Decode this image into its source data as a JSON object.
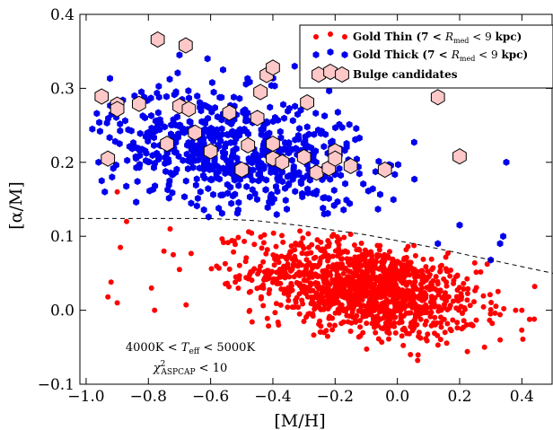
{
  "chart_data": {
    "type": "scatter",
    "xlabel": "[M/H]",
    "ylabel": "[α/M]",
    "xlim": [
      -1.02,
      0.5
    ],
    "ylim": [
      -0.1,
      0.4
    ],
    "x_ticks": [
      -1.0,
      -0.8,
      -0.6,
      -0.4,
      -0.2,
      0.0,
      0.2,
      0.4
    ],
    "y_ticks": [
      -0.1,
      0.0,
      0.1,
      0.2,
      0.3,
      0.4
    ],
    "x_tick_labels": [
      "−1.0",
      "−0.8",
      "−0.6",
      "−0.4",
      "−0.2",
      "0.0",
      "0.2",
      "0.4"
    ],
    "y_tick_labels": [
      "−0.1",
      "0.0",
      "0.1",
      "0.2",
      "0.3",
      "0.4"
    ],
    "grid": false,
    "legend_position": "top-right",
    "annotations": [
      "4000K < T_eff < 5000K",
      "χ²_ASPCAP < 10"
    ],
    "colors": {
      "thin": "#ff0000",
      "thick": "#0000ee",
      "bulge_fill": "#ffc8c8",
      "bulge_edge": "#000000"
    },
    "dividing_line": {
      "style": "dashed",
      "points": [
        [
          -1.02,
          0.124
        ],
        [
          -0.6,
          0.124
        ],
        [
          -0.45,
          0.121
        ],
        [
          -0.3,
          0.114
        ],
        [
          -0.1,
          0.102
        ],
        [
          0.1,
          0.086
        ],
        [
          0.3,
          0.068
        ],
        [
          0.5,
          0.05
        ]
      ]
    },
    "series": [
      {
        "name": "Gold Thin",
        "legend_label": "Gold Thin (7 < R_med < 9 kpc)",
        "marker": "circle",
        "cluster": {
          "center": [
            -0.1,
            0.03
          ],
          "spread": [
            0.18,
            0.03
          ],
          "count": 1300,
          "x_range": [
            -0.8,
            0.45
          ],
          "y_range": [
            -0.075,
            0.125
          ],
          "max_y_at_x": "below dividing line"
        },
        "points": [
          [
            -0.93,
            0.018
          ],
          [
            -0.92,
            0.038
          ],
          [
            -0.9,
            0.01
          ],
          [
            -0.89,
            0.085
          ],
          [
            -0.9,
            0.16
          ],
          [
            -0.87,
            0.12
          ],
          [
            -0.79,
            0.03
          ],
          [
            -0.78,
            0.0
          ],
          [
            -0.75,
            0.08
          ],
          [
            -0.73,
            0.11
          ],
          [
            -0.72,
            0.075
          ],
          [
            -0.7,
            0.055
          ],
          [
            0.38,
            0.0
          ],
          [
            0.4,
            0.0
          ],
          [
            0.33,
            -0.04
          ],
          [
            0.28,
            -0.05
          ]
        ]
      },
      {
        "name": "Gold Thick",
        "legend_label": "Gold Thick (7 < R_med < 9 kpc)",
        "marker": "hexagon",
        "cluster": {
          "center": [
            -0.52,
            0.215
          ],
          "spread": [
            0.2,
            0.04
          ],
          "count": 650,
          "x_range": [
            -0.98,
            0.35
          ],
          "y_range": [
            0.125,
            0.325
          ],
          "min_y_at_x": "above dividing line"
        },
        "points": [
          [
            -0.98,
            0.245
          ],
          [
            -0.96,
            0.2
          ],
          [
            -0.95,
            0.175
          ],
          [
            -0.94,
            0.16
          ],
          [
            -0.7,
            0.345
          ],
          [
            -0.61,
            0.34
          ],
          [
            -0.33,
            0.33
          ],
          [
            -0.56,
            0.325
          ],
          [
            0.3,
            0.068
          ],
          [
            0.33,
            0.09
          ],
          [
            0.34,
            0.1
          ],
          [
            0.35,
            0.2
          ],
          [
            0.2,
            0.115
          ],
          [
            0.13,
            0.09
          ]
        ]
      },
      {
        "name": "Bulge candidates",
        "legend_label": "Bulge candidates",
        "marker": "hexagon",
        "points": [
          [
            -0.95,
            0.289
          ],
          [
            -0.9,
            0.278
          ],
          [
            -0.9,
            0.272
          ],
          [
            -0.83,
            0.279
          ],
          [
            -0.77,
            0.366
          ],
          [
            -0.74,
            0.225
          ],
          [
            -0.7,
            0.276
          ],
          [
            -0.68,
            0.358
          ],
          [
            -0.67,
            0.272
          ],
          [
            -0.65,
            0.24
          ],
          [
            -0.93,
            0.205
          ],
          [
            -0.6,
            0.215
          ],
          [
            -0.54,
            0.267
          ],
          [
            -0.5,
            0.19
          ],
          [
            -0.45,
            0.26
          ],
          [
            -0.48,
            0.223
          ],
          [
            -0.44,
            0.295
          ],
          [
            -0.42,
            0.318
          ],
          [
            -0.4,
            0.328
          ],
          [
            -0.4,
            0.225
          ],
          [
            -0.4,
            0.205
          ],
          [
            -0.37,
            0.2
          ],
          [
            -0.3,
            0.207
          ],
          [
            -0.29,
            0.281
          ],
          [
            -0.26,
            0.186
          ],
          [
            -0.22,
            0.192
          ],
          [
            -0.2,
            0.215
          ],
          [
            -0.2,
            0.205
          ],
          [
            -0.15,
            0.195
          ],
          [
            -0.04,
            0.19
          ],
          [
            0.13,
            0.288
          ],
          [
            0.2,
            0.208
          ]
        ]
      }
    ]
  }
}
